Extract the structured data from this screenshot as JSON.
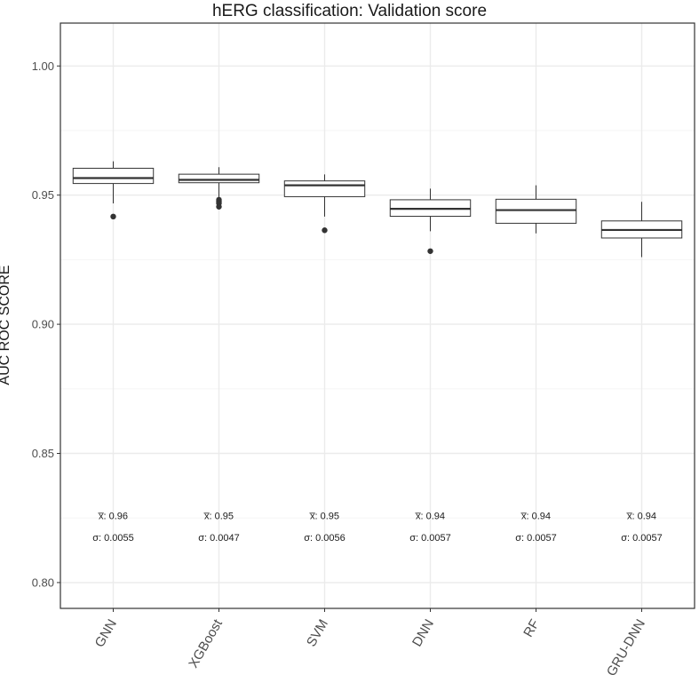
{
  "chart_data": {
    "type": "boxplot",
    "title": "hERG classification: Validation score",
    "xlabel": "",
    "ylabel": "AUC ROC SCORE",
    "ylim": [
      0.79,
      1.0166
    ],
    "yticks": [
      "0.80",
      "0.85",
      "0.90",
      "0.95",
      "1.00"
    ],
    "grid": true,
    "categories": [
      "GNN",
      "XGBoost",
      "SVM",
      "DNN",
      "RF",
      "GRU-DNN"
    ],
    "boxes": [
      {
        "whisker_low": 0.9468,
        "q1": 0.9545,
        "median": 0.9566,
        "q3": 0.9604,
        "whisker_high": 0.9631,
        "outliers": [
          0.9417
        ]
      },
      {
        "whisker_low": 0.949,
        "q1": 0.9548,
        "median": 0.9559,
        "q3": 0.9581,
        "whisker_high": 0.9608,
        "outliers": [
          0.9482,
          0.9475,
          0.9468,
          0.9455
        ]
      },
      {
        "whisker_low": 0.9417,
        "q1": 0.9494,
        "median": 0.9538,
        "q3": 0.9555,
        "whisker_high": 0.958,
        "outliers": [
          0.9364
        ]
      },
      {
        "whisker_low": 0.936,
        "q1": 0.9418,
        "median": 0.9447,
        "q3": 0.9482,
        "whisker_high": 0.9525,
        "outliers": [
          0.9283
        ]
      },
      {
        "whisker_low": 0.9352,
        "q1": 0.9391,
        "median": 0.9442,
        "q3": 0.9484,
        "whisker_high": 0.9538,
        "outliers": []
      },
      {
        "whisker_low": 0.926,
        "q1": 0.9334,
        "median": 0.9365,
        "q3": 0.94,
        "whisker_high": 0.9474,
        "outliers": []
      }
    ],
    "annotations": [
      {
        "mean_label": "x̅: 0.96",
        "sd_label": "σ: 0.0055"
      },
      {
        "mean_label": "x̅: 0.95",
        "sd_label": "σ: 0.0047"
      },
      {
        "mean_label": "x̅: 0.95",
        "sd_label": "σ: 0.0056"
      },
      {
        "mean_label": "x̅: 0.94",
        "sd_label": "σ: 0.0057"
      },
      {
        "mean_label": "x̅: 0.94",
        "sd_label": "σ: 0.0057"
      },
      {
        "mean_label": "x̅: 0.94",
        "sd_label": "σ: 0.0057"
      }
    ],
    "annotation_y": {
      "mean": 0.8259,
      "sd": 0.8175
    },
    "colors": {
      "box_fill": "#ffffff",
      "box_line": "#333333",
      "grid_major": "#ebebeb",
      "grid_minor": "#f5f5f5",
      "panel_border": "#333333",
      "outlier": "#333333"
    }
  }
}
